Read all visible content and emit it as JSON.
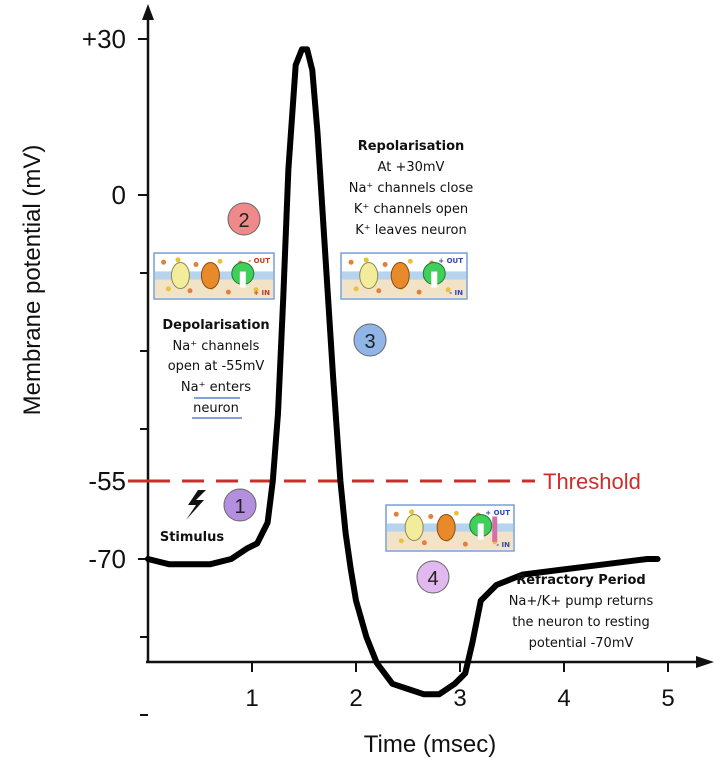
{
  "chart_data": {
    "type": "line",
    "xlabel": "Time (msec)",
    "ylabel": "Membrane potential (mV)",
    "xlim": [
      0,
      5.5
    ],
    "ylim": [
      -105,
      40
    ],
    "x_ticks": [
      "1",
      "2",
      "3",
      "4",
      "5"
    ],
    "x_tick_values": [
      1,
      2,
      3,
      4,
      5
    ],
    "y_ticks": [
      "+30",
      "0",
      "-55",
      "-70"
    ],
    "y_tick_values": [
      30,
      0,
      -55,
      -70
    ],
    "threshold": {
      "value": -55,
      "label": "Threshold",
      "color": "#c9302c"
    },
    "series": [
      {
        "x": [
          0,
          0.2,
          0.4,
          0.6,
          0.8,
          0.95,
          1.05,
          1.15,
          1.2,
          1.25,
          1.3,
          1.35,
          1.42,
          1.48,
          1.53,
          1.58,
          1.63,
          1.7,
          1.78,
          1.85,
          1.9,
          1.95,
          2.0,
          2.1,
          2.2,
          2.35,
          2.5,
          2.65,
          2.8,
          2.95,
          3.05,
          3.12,
          3.2,
          3.35,
          3.6,
          4.0,
          4.4,
          4.8,
          4.9
        ],
        "y": [
          -70,
          -71,
          -71,
          -71,
          -70,
          -68,
          -67,
          -63,
          -55,
          -42,
          -20,
          5,
          25,
          28,
          28,
          24,
          12,
          -10,
          -35,
          -55,
          -65,
          -72,
          -78,
          -85,
          -90,
          -94,
          -95,
          -96,
          -96,
          -94,
          -92,
          -86,
          -78,
          -75,
          -73,
          -72,
          -71,
          -70,
          -70
        ]
      }
    ]
  },
  "annotations": {
    "markers": [
      {
        "number": "1",
        "color": "#b48fe0"
      },
      {
        "number": "2",
        "color": "#f08a8a"
      },
      {
        "number": "3",
        "color": "#8fb6e6"
      },
      {
        "number": "4",
        "color": "#e2b8f0"
      }
    ],
    "stimulus": "Stimulus",
    "depolarisation": {
      "title": "Depolarisation",
      "line1": "Na⁺ channels",
      "line2": "open at -55mV",
      "line3": "Na⁺ enters",
      "line4": "neuron"
    },
    "repolarisation": {
      "title": "Repolarisation",
      "line1": "At +30mV",
      "line2": "Na⁺ channels close",
      "line3": "K⁺ channels open",
      "line4": "K⁺ leaves neuron"
    },
    "refractory": {
      "title": "Refractory Period",
      "line1": "Na+/K+ pump returns",
      "line2": "the neuron to resting",
      "line3": "potential -70mV"
    },
    "membrane_labels": {
      "a_out": "- OUT",
      "a_in": "+ IN",
      "b_out": "+ OUT",
      "b_in": "- IN",
      "c_out": "+ OUT",
      "c_in": "- IN"
    }
  }
}
